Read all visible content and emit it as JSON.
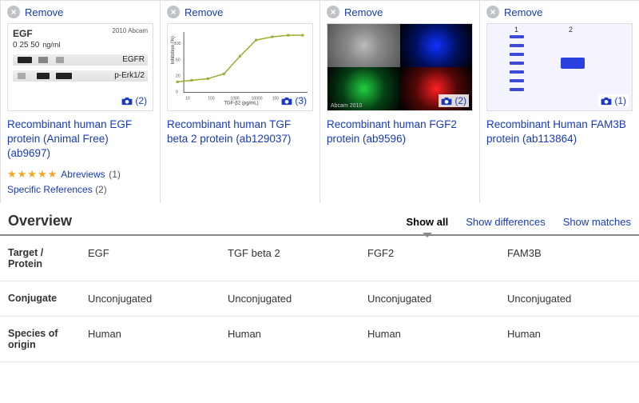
{
  "remove_label": "Remove",
  "products": [
    {
      "title": "Recombinant human EGF protein (Animal Free) (ab9697)",
      "photo_count": "(2)",
      "abreviews_label": "Abreviews",
      "abreviews_count": "(1)",
      "specref_label": "Specific References",
      "specref_count": "(2)",
      "thumb": {
        "header": "EGF",
        "watermark": "2010 Abcam",
        "doses": "0  25  50",
        "unit": "ng/ml",
        "row1_label": "EGFR",
        "row2_label": "p-Erk1/2"
      }
    },
    {
      "title": "Recombinant human TGF beta 2 protein (ab129037)",
      "photo_count": "(3)",
      "thumb": {
        "xlabel": "TGF-β2 (pg/mL)",
        "ylabel": "Inhibition (%)",
        "line_color": "#9aae2e",
        "points": [
          [
            12,
            72
          ],
          [
            30,
            70
          ],
          [
            50,
            68
          ],
          [
            70,
            62
          ],
          [
            90,
            40
          ],
          [
            110,
            20
          ],
          [
            130,
            16
          ],
          [
            150,
            14
          ],
          [
            168,
            14
          ]
        ]
      }
    },
    {
      "title": "Recombinant human FGF2 protein (ab9596)",
      "photo_count": "(2)",
      "thumb": {
        "watermark": "Abcam 2010"
      }
    },
    {
      "title": "Recombinant Human FAM3B protein (ab113864)",
      "photo_count": "(1)",
      "thumb": {
        "lane1": "1",
        "lane2": "2"
      }
    }
  ],
  "overview": {
    "title": "Overview",
    "tabs": {
      "all": "Show all",
      "diff": "Show differences",
      "match": "Show matches"
    }
  },
  "rows": [
    {
      "label": "Target / Protein",
      "cells": [
        "EGF",
        "TGF beta 2",
        "FGF2",
        "FAM3B"
      ]
    },
    {
      "label": "Conjugate",
      "cells": [
        "Unconjugated",
        "Unconjugated",
        "Unconjugated",
        "Unconjugated"
      ]
    },
    {
      "label": "Species of origin",
      "cells": [
        "Human",
        "Human",
        "Human",
        "Human"
      ]
    }
  ],
  "colors": {
    "link": "#1839c4",
    "star": "#f5a623",
    "camera": "#1839c4"
  }
}
